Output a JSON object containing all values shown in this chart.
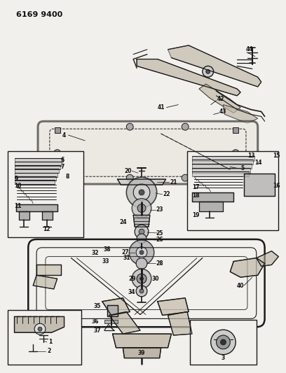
{
  "title": "6169 9400",
  "bg_color": "#f2f0ec",
  "line_color": "#1a1a1a",
  "fig_width": 4.08,
  "fig_height": 5.33,
  "dpi": 100
}
